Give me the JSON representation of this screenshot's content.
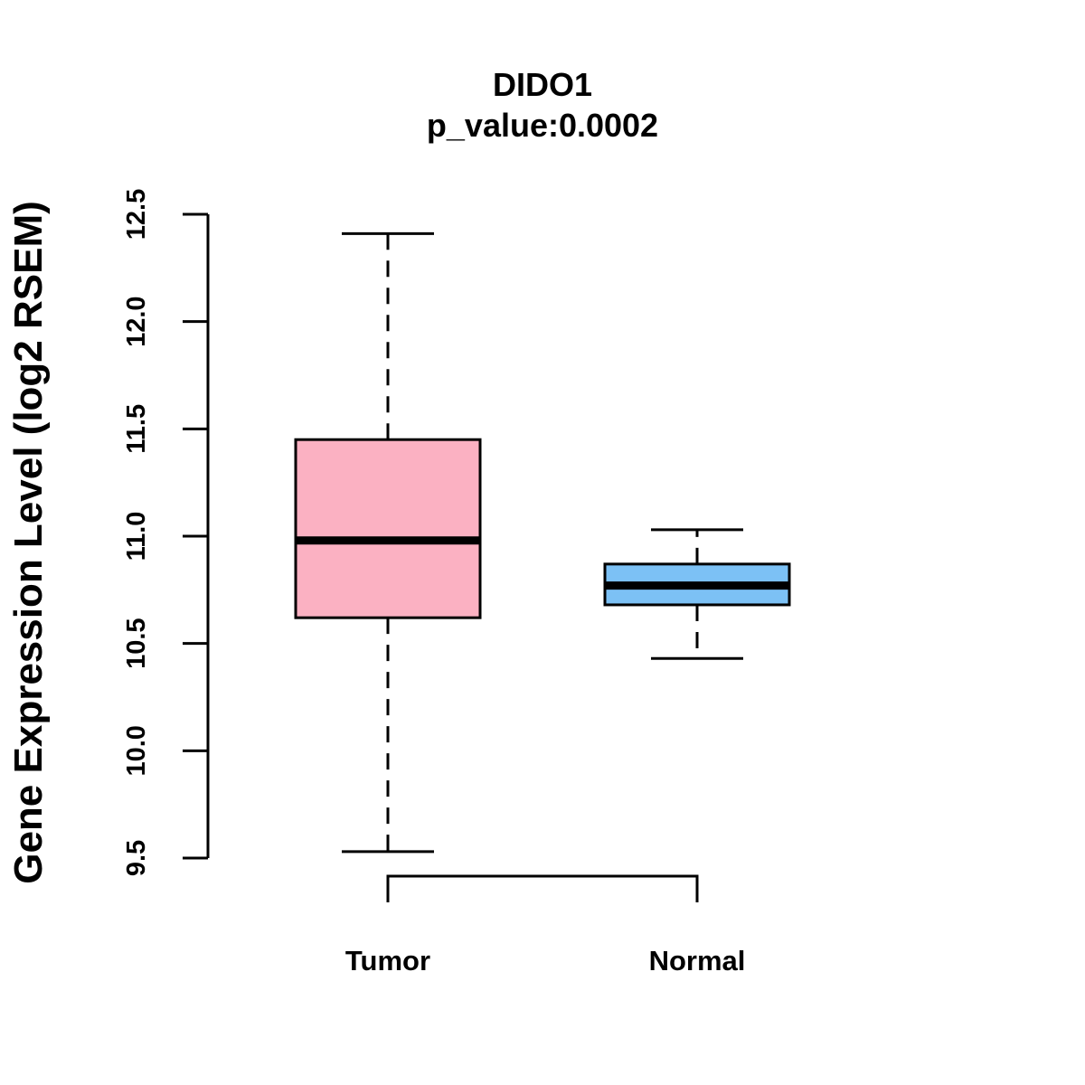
{
  "chart_data": {
    "type": "boxplot",
    "title": "DIDO1",
    "subtitle": "p_value:0.0002",
    "ylabel": "Gene Expression Level (log2 RSEM)",
    "xlabel": "",
    "ylim": [
      9.5,
      12.5
    ],
    "yticks": [
      9.5,
      10.0,
      10.5,
      11.0,
      11.5,
      12.0,
      12.5
    ],
    "ytick_labels": [
      "9.5",
      "10.0",
      "10.5",
      "11.0",
      "11.5",
      "12.0",
      "12.5"
    ],
    "categories": [
      "Tumor",
      "Normal"
    ],
    "boxes": [
      {
        "name": "Tumor",
        "min": 9.53,
        "q1": 10.62,
        "median": 10.98,
        "q3": 11.45,
        "max": 12.41,
        "color": "#FBB1C2"
      },
      {
        "name": "Normal",
        "min": 10.43,
        "q1": 10.68,
        "median": 10.77,
        "q3": 10.87,
        "max": 11.03,
        "color": "#7CC1F5"
      }
    ],
    "grid": false,
    "legend": "none",
    "significance_bracket": {
      "from": "Tumor",
      "to": "Normal",
      "position": "bottom"
    }
  }
}
